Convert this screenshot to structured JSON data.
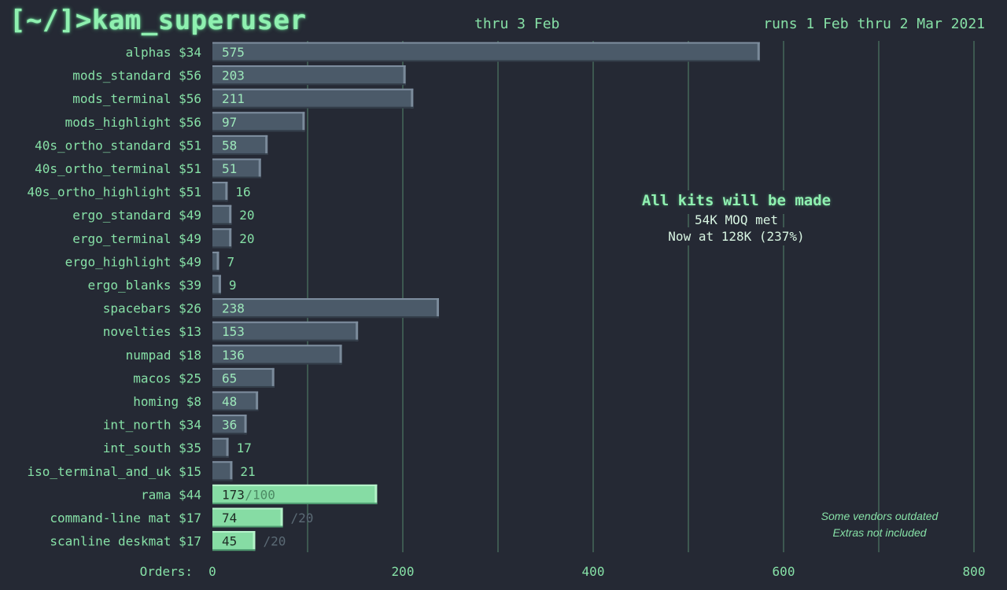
{
  "header": {
    "title": "[~/]>kam_superuser",
    "snapshot": "thru 3 Feb",
    "run_dates": "runs 1 Feb thru 2 Mar 2021"
  },
  "callout": {
    "headline": "All kits will be made",
    "line1": "54K MOQ met",
    "line2": "Now at 128K (237%)"
  },
  "notes": {
    "line1": "Some vendors outdated",
    "line2": "Extras not included"
  },
  "colors": {
    "background": "#252934",
    "bar": "#4b5a69",
    "bar_highlight": "#86dca4",
    "text": "#86e0a6",
    "grid": "#6fb88c"
  },
  "chart_data": {
    "type": "bar",
    "orientation": "horizontal",
    "xlabel": "Orders:",
    "xlim": [
      0,
      800
    ],
    "xticks": [
      0,
      200,
      400,
      600,
      800
    ],
    "grid": true,
    "items": [
      {
        "label": "alphas $34",
        "value": 575
      },
      {
        "label": "mods_standard $56",
        "value": 203
      },
      {
        "label": "mods_terminal $56",
        "value": 211
      },
      {
        "label": "mods_highlight $56",
        "value": 97
      },
      {
        "label": "40s_ortho_standard $51",
        "value": 58
      },
      {
        "label": "40s_ortho_terminal $51",
        "value": 51
      },
      {
        "label": "40s_ortho_highlight $51",
        "value": 16
      },
      {
        "label": "ergo_standard $49",
        "value": 20
      },
      {
        "label": "ergo_terminal $49",
        "value": 20
      },
      {
        "label": "ergo_highlight $49",
        "value": 7
      },
      {
        "label": "ergo_blanks $39",
        "value": 9
      },
      {
        "label": "spacebars $26",
        "value": 238
      },
      {
        "label": "novelties $13",
        "value": 153
      },
      {
        "label": "numpad $18",
        "value": 136
      },
      {
        "label": "macos $25",
        "value": 65
      },
      {
        "label": "homing  $8",
        "value": 48
      },
      {
        "label": "int_north $34",
        "value": 36
      },
      {
        "label": "int_south $35",
        "value": 17
      },
      {
        "label": "iso_terminal_and_uk $15",
        "value": 21
      },
      {
        "label": "rama $44",
        "value": 173,
        "target": "/100",
        "highlight": true
      },
      {
        "label": "command-line mat $17",
        "value": 74,
        "target": "/20",
        "highlight": true
      },
      {
        "label": "scanline deskmat $17",
        "value": 45,
        "target": "/20",
        "highlight": true
      }
    ]
  }
}
